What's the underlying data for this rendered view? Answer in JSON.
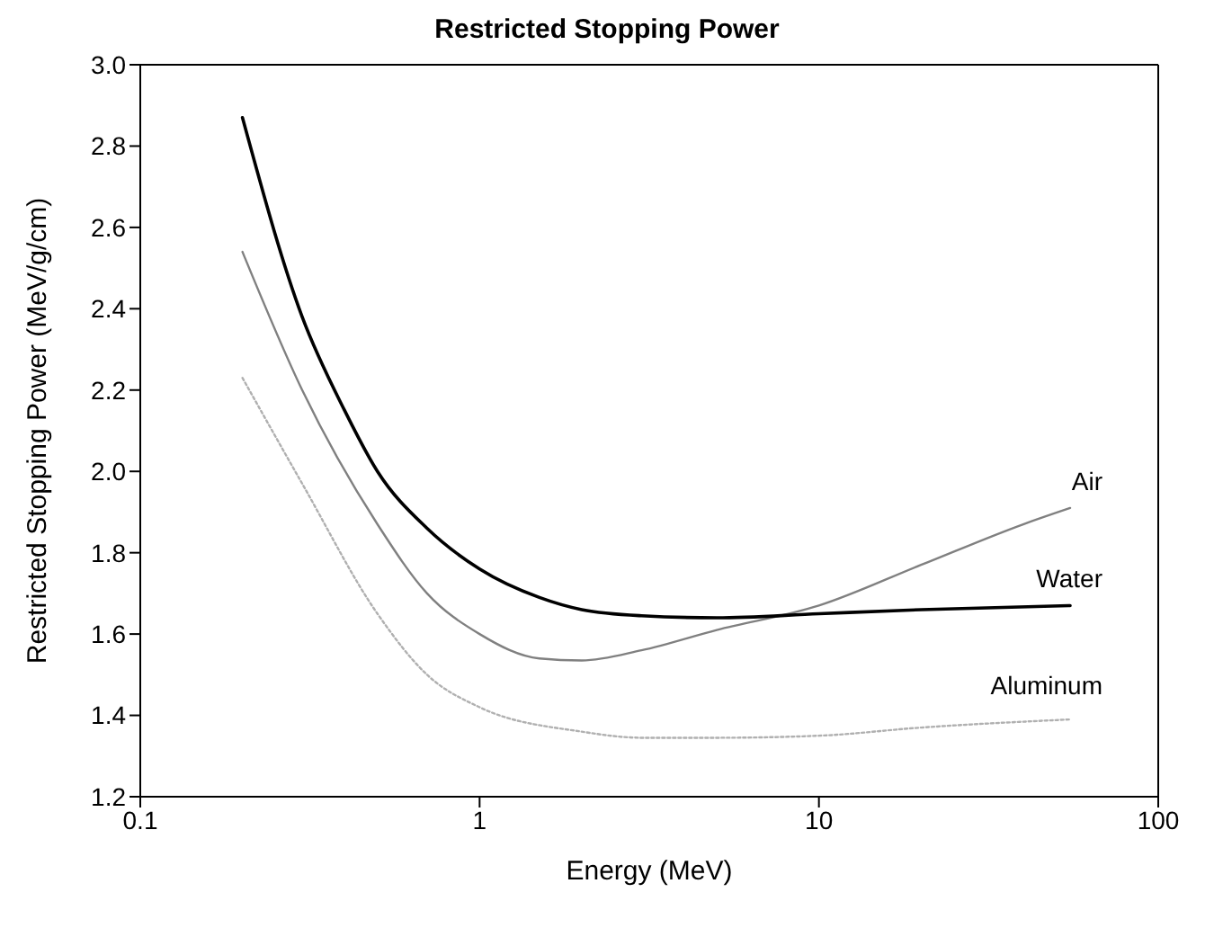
{
  "chart_data": {
    "type": "line",
    "title": "Restricted Stopping Power",
    "xlabel": "Energy (MeV)",
    "ylabel": "Restricted Stopping Power (MeV/g/cm)",
    "log": "x",
    "xlim": [
      0.1,
      100
    ],
    "xticks": [
      0.1,
      1,
      10,
      100
    ],
    "ylim": [
      1.2,
      3.0
    ],
    "yticks": [
      {
        "value": 1.2,
        "label": "1.2"
      },
      1.4,
      1.6,
      1.8,
      {
        "value": 2.0,
        "label": "2.0"
      },
      2.2,
      2.4,
      2.6,
      2.8,
      {
        "value": 3.0,
        "label": "3.0"
      }
    ],
    "grid": false,
    "legend": false,
    "marker": "none",
    "series": [
      {
        "name": "Air",
        "color": "#808080",
        "line_style": "solid",
        "x": [
          0.2,
          0.3,
          0.5,
          0.7,
          1,
          1.5,
          2,
          3,
          5,
          10,
          20,
          40,
          55
        ],
        "values": [
          2.54,
          2.2,
          1.87,
          1.7,
          1.6,
          1.54,
          1.535,
          1.56,
          1.61,
          1.67,
          1.77,
          1.87,
          1.91
        ]
      },
      {
        "name": "Water",
        "color": "#000000",
        "line_style": "solid",
        "x": [
          0.2,
          0.3,
          0.4,
          0.5,
          0.7,
          1,
          1.5,
          2,
          3,
          5,
          10,
          20,
          55
        ],
        "values": [
          2.87,
          2.38,
          2.15,
          2.0,
          1.86,
          1.76,
          1.69,
          1.66,
          1.645,
          1.64,
          1.65,
          1.66,
          1.67
        ]
      },
      {
        "name": "Aluminum",
        "color": "#b0b0b0",
        "line_style": "dotted",
        "x": [
          0.2,
          0.3,
          0.5,
          0.7,
          1,
          2,
          3,
          5,
          10,
          20,
          55
        ],
        "values": [
          2.23,
          1.97,
          1.65,
          1.5,
          1.42,
          1.36,
          1.345,
          1.345,
          1.35,
          1.37,
          1.39
        ]
      }
    ]
  }
}
